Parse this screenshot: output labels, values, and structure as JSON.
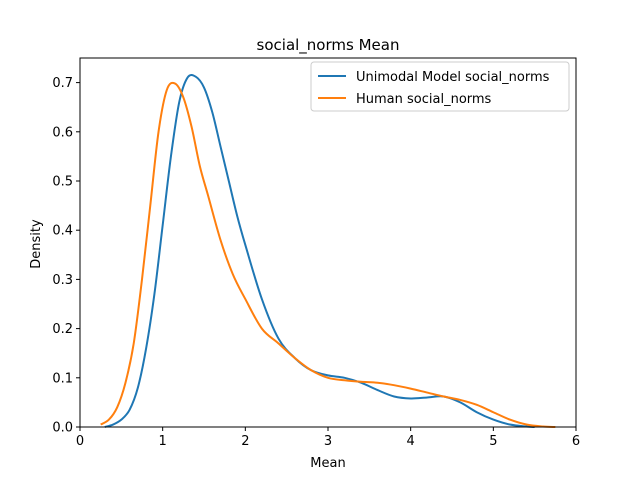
{
  "chart_data": {
    "type": "line",
    "title": "social_norms Mean",
    "xlabel": "Mean",
    "ylabel": "Density",
    "xlim": [
      0,
      6
    ],
    "ylim": [
      0,
      0.75
    ],
    "xticks": [
      "0",
      "1",
      "2",
      "3",
      "4",
      "5",
      "6"
    ],
    "yticks": [
      "0.0",
      "0.1",
      "0.2",
      "0.3",
      "0.4",
      "0.5",
      "0.6",
      "0.7"
    ],
    "grid": false,
    "legend_position": "top-right",
    "series": [
      {
        "name": "Unimodal Model social_norms",
        "color": "#1f77b4",
        "x": [
          0.3,
          0.4,
          0.5,
          0.6,
          0.7,
          0.8,
          0.9,
          1.0,
          1.1,
          1.2,
          1.3,
          1.4,
          1.5,
          1.6,
          1.7,
          1.8,
          1.9,
          2.0,
          2.2,
          2.4,
          2.6,
          2.8,
          3.0,
          3.2,
          3.4,
          3.6,
          3.8,
          4.0,
          4.2,
          4.4,
          4.6,
          4.8,
          5.0,
          5.2,
          5.4,
          5.5
        ],
        "y": [
          0.0,
          0.005,
          0.015,
          0.035,
          0.08,
          0.16,
          0.27,
          0.41,
          0.55,
          0.66,
          0.71,
          0.712,
          0.69,
          0.64,
          0.57,
          0.5,
          0.43,
          0.37,
          0.26,
          0.18,
          0.14,
          0.115,
          0.105,
          0.1,
          0.09,
          0.075,
          0.062,
          0.058,
          0.06,
          0.062,
          0.05,
          0.03,
          0.015,
          0.005,
          0.001,
          0.0
        ]
      },
      {
        "name": "Human social_norms",
        "color": "#ff7f0e",
        "x": [
          0.25,
          0.35,
          0.45,
          0.55,
          0.65,
          0.75,
          0.85,
          0.95,
          1.05,
          1.15,
          1.25,
          1.35,
          1.45,
          1.55,
          1.7,
          1.85,
          2.0,
          2.2,
          2.4,
          2.6,
          2.8,
          3.0,
          3.2,
          3.4,
          3.6,
          3.8,
          4.0,
          4.2,
          4.4,
          4.6,
          4.8,
          5.0,
          5.2,
          5.4,
          5.6,
          5.75
        ],
        "y": [
          0.005,
          0.015,
          0.04,
          0.09,
          0.17,
          0.3,
          0.45,
          0.6,
          0.685,
          0.698,
          0.67,
          0.61,
          0.53,
          0.47,
          0.38,
          0.31,
          0.26,
          0.2,
          0.17,
          0.14,
          0.115,
          0.1,
          0.095,
          0.092,
          0.09,
          0.085,
          0.078,
          0.07,
          0.062,
          0.055,
          0.045,
          0.03,
          0.015,
          0.005,
          0.001,
          0.0
        ]
      }
    ]
  }
}
